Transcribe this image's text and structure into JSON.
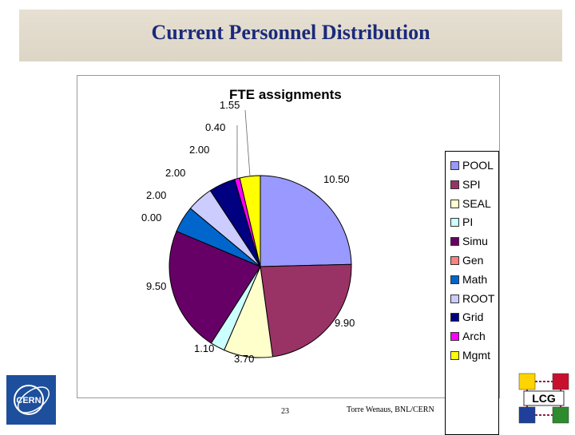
{
  "slide": {
    "title": "Current Personnel Distribution",
    "page_number": "23",
    "author": "Torre Wenaus, BNL/CERN"
  },
  "logos": {
    "cern_text": "CERN",
    "lcg_text": "LCG"
  },
  "colors": {
    "title_text": "#1a2a7a",
    "title_bar": "#e2dbcc"
  },
  "chart_data": {
    "type": "pie",
    "title": "FTE assignments",
    "legend_position": "right",
    "slices": [
      {
        "name": "POOL",
        "value": 10.5,
        "label": "10.50",
        "color": "#9999ff"
      },
      {
        "name": "SPI",
        "value": 9.9,
        "label": "9.90",
        "color": "#993366"
      },
      {
        "name": "SEAL",
        "value": 3.7,
        "label": "3.70",
        "color": "#ffffcc"
      },
      {
        "name": "PI",
        "value": 1.1,
        "label": "1.10",
        "color": "#ccffff"
      },
      {
        "name": "Simu",
        "value": 9.5,
        "label": "9.50",
        "color": "#660066"
      },
      {
        "name": "Gen",
        "value": 0.0,
        "label": "0.00",
        "color": "#ff8080"
      },
      {
        "name": "Math",
        "value": 2.0,
        "label": "2.00",
        "color": "#0066cc"
      },
      {
        "name": "ROOT",
        "value": 2.0,
        "label": "2.00",
        "color": "#ccccff"
      },
      {
        "name": "Grid",
        "value": 2.0,
        "label": "2.00",
        "color": "#000080"
      },
      {
        "name": "Arch",
        "value": 0.4,
        "label": "0.40",
        "color": "#ff00ff"
      },
      {
        "name": "Mgmt",
        "value": 1.55,
        "label": "1.55",
        "color": "#ffff00"
      }
    ]
  }
}
